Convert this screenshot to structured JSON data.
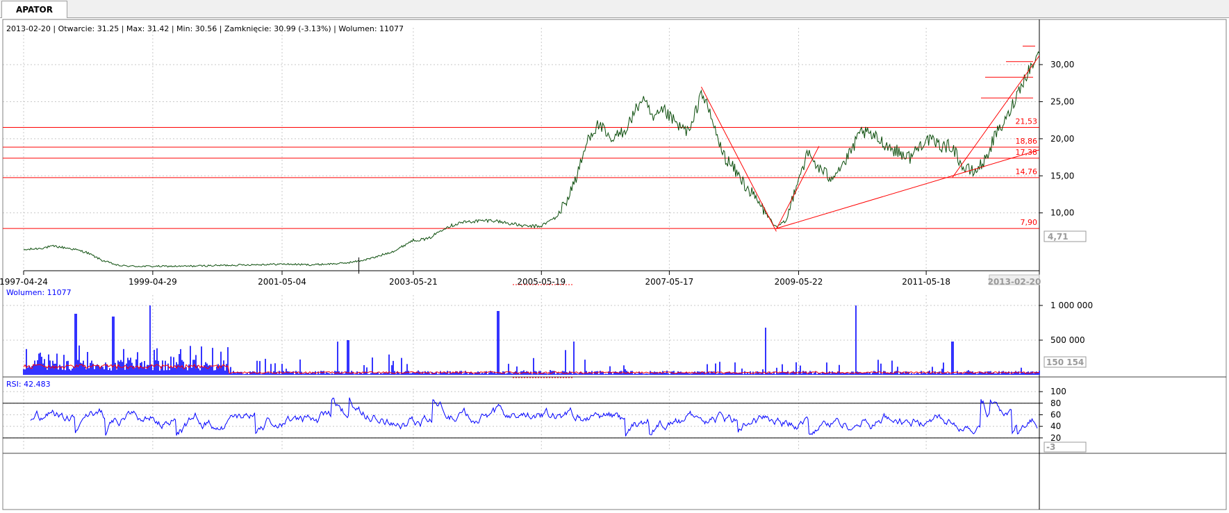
{
  "app": {
    "tab_label": "APATOR",
    "info": {
      "date": "2013-02-20",
      "open": "Otwarcie: 31.25",
      "max": "Max: 31.42",
      "min": "Min: 30.56",
      "close": "Zamknięcie: 30.99 (-3.13%)",
      "volume": "Wolumen: 11077",
      "separator": " | "
    }
  },
  "colors": {
    "price_line": "#0b4d0b",
    "overlay_red": "#ff0000",
    "volume_bar": "#0000ff",
    "rsi_line": "#0000ff",
    "grid": "#c8c8c8",
    "axis": "#000000",
    "marker_box_text": "#9a9a9a"
  },
  "chart_data": [
    {
      "type": "line",
      "panel": "price",
      "x_tick_labels": [
        "1997-04-24",
        "1999-04-29",
        "2001-05-04",
        "2003-05-21",
        "2005-05-19",
        "2007-05-17",
        "2009-05-22",
        "2011-05-18",
        "2013-02-20"
      ],
      "y_tick_labels": [
        "10,00",
        "15,00",
        "20,00",
        "25,00",
        "30,00"
      ],
      "y_ticks": [
        10,
        15,
        20,
        25,
        30
      ],
      "ylim": [
        2.2,
        34.5
      ],
      "current_value_box": "4,71",
      "horizontal_levels": [
        {
          "value": 21.53,
          "label": "21,53"
        },
        {
          "value": 18.86,
          "label": "18,86"
        },
        {
          "value": 17.38,
          "label": "17,38"
        },
        {
          "value": 14.76,
          "label": "14,76"
        },
        {
          "value": 7.9,
          "label": "7,90"
        }
      ],
      "series": [
        {
          "x": [
            "1997-04-24",
            "1997-07",
            "1997-10",
            "1998-01",
            "1998-04",
            "1998-07",
            "1998-10",
            "1999-01",
            "1999-04",
            "1999-10",
            "2000-04",
            "2000-10",
            "2001-05",
            "2001-10",
            "2002-04",
            "2002-07",
            "2002-10",
            "2002-12",
            "2003-02",
            "2003-05",
            "2003-08",
            "2003-11",
            "2004-02",
            "2004-05",
            "2004-08",
            "2004-11",
            "2005-02",
            "2005-05",
            "2005-08",
            "2005-10",
            "2005-12",
            "2006-02",
            "2006-04",
            "2006-06",
            "2006-09",
            "2006-12",
            "2007-02",
            "2007-04",
            "2007-07",
            "2007-09",
            "2007-11",
            "2008-01",
            "2008-03",
            "2008-06",
            "2008-09",
            "2008-11",
            "2009-01",
            "2009-03",
            "2009-05",
            "2009-07",
            "2009-09",
            "2009-11",
            "2010-02",
            "2010-05",
            "2010-08",
            "2010-11",
            "2011-02",
            "2011-05",
            "2011-08",
            "2011-10",
            "2011-12",
            "2012-02",
            "2012-04",
            "2012-06",
            "2012-08",
            "2012-10",
            "2012-12",
            "2013-02-20"
          ],
          "y": [
            5.0,
            5.2,
            5.5,
            5.2,
            4.7,
            3.6,
            2.9,
            2.8,
            2.8,
            2.8,
            2.9,
            3.0,
            3.1,
            3.0,
            3.2,
            3.5,
            4.0,
            4.5,
            5.0,
            6.3,
            6.5,
            8.0,
            8.7,
            8.9,
            9.0,
            8.6,
            8.2,
            8.2,
            9.5,
            12.0,
            15.5,
            20.5,
            22.0,
            19.5,
            21.5,
            25.5,
            22.5,
            23.8,
            21.5,
            21.0,
            26.5,
            22.5,
            18.0,
            15.0,
            12.0,
            10.0,
            8.0,
            9.0,
            14.5,
            18.0,
            16.0,
            14.8,
            17.0,
            21.0,
            20.0,
            18.5,
            17.5,
            20.0,
            19.0,
            19.0,
            16.0,
            15.5,
            17.0,
            20.5,
            22.5,
            26.0,
            29.0,
            31.5
          ]
        }
      ],
      "trendlines": [
        {
          "from": {
            "x": "2007-11",
            "y": 27.0
          },
          "to": {
            "x": "2009-01",
            "y": 7.5
          }
        },
        {
          "from": {
            "x": "2009-01",
            "y": 7.8
          },
          "to": {
            "x": "2009-09",
            "y": 19.0
          }
        },
        {
          "from": {
            "x": "2009-01",
            "y": 7.9
          },
          "to": {
            "x": "2013-02-20",
            "y": 18.5
          }
        },
        {
          "from": {
            "x": "2011-10",
            "y": 14.8
          },
          "to": {
            "x": "2013-02-20",
            "y": 31.2
          }
        }
      ]
    },
    {
      "type": "bar",
      "panel": "volume",
      "label": "Wolumen: 11077",
      "y_tick_labels": [
        "500 000",
        "1 000 000"
      ],
      "y_ticks": [
        500000,
        1000000
      ],
      "ylim": [
        0,
        1050000
      ],
      "current_value_box": "150 154",
      "spikes": [
        {
          "x": "1997-04",
          "value": 880000
        },
        {
          "x": "1998-02",
          "value": 880000
        },
        {
          "x": "1998-09",
          "value": 840000
        },
        {
          "x": "1999-04",
          "value": 1000000
        },
        {
          "x": "2002-05",
          "value": 500000
        },
        {
          "x": "2004-09",
          "value": 920000
        },
        {
          "x": "2008-11",
          "value": 680000
        },
        {
          "x": "2010-04",
          "value": 1000000
        },
        {
          "x": "2011-10",
          "value": 480000
        }
      ]
    },
    {
      "type": "line",
      "panel": "rsi",
      "label": "RSI: 42.483",
      "y_tick_labels": [
        "20",
        "40",
        "60",
        "80",
        "100"
      ],
      "y_ticks": [
        20,
        40,
        60,
        80,
        100
      ],
      "ylim": [
        -3,
        105
      ],
      "levels": [
        20,
        80
      ],
      "current_value_box": "-3"
    }
  ]
}
